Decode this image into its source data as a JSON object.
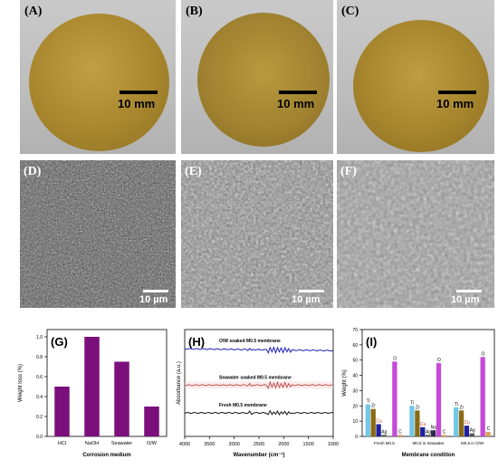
{
  "photos": {
    "A": {
      "label": "(A)",
      "scale": "10 mm"
    },
    "B": {
      "label": "(B)",
      "scale": "10 mm"
    },
    "C": {
      "label": "(C)",
      "scale": "10 mm"
    }
  },
  "sem": {
    "D": {
      "label": "(D)",
      "scale": "10 µm"
    },
    "E": {
      "label": "(E)",
      "scale": "10 µm"
    },
    "F": {
      "label": "(F)",
      "scale": "10 µm"
    }
  },
  "colors": {
    "disc": "#a8872e",
    "bar_purple": "#7b0f7b",
    "line_blue": "#1d22b8",
    "line_red": "#a31a1a",
    "line_black": "#111111"
  },
  "chart_data": [
    {
      "panel": "(G)",
      "type": "bar",
      "categories": [
        "HCl",
        "NaOH",
        "Seawater",
        "O/W"
      ],
      "values": [
        0.5,
        1.0,
        0.75,
        0.3
      ],
      "ylabel": "Weight loss (%)",
      "xlabel": "Corrosion medium",
      "ylim": [
        0.0,
        1.0
      ],
      "yticks": [
        "0.0",
        "0.2",
        "0.4",
        "0.6",
        "0.8",
        "1.0"
      ]
    },
    {
      "panel": "(H)",
      "type": "line",
      "ylabel": "Absorbance (a.u.)",
      "xlabel": "Wavenumber (cm⁻¹)",
      "xlim": [
        4000,
        1000
      ],
      "xticks": [
        "4000",
        "3500",
        "3000",
        "2500",
        "2000",
        "1500",
        "1000"
      ],
      "series": [
        {
          "name": "O/W soaked M0.5 membrane",
          "level": 0.82
        },
        {
          "name": "Seawater soaked M0.5 membrane",
          "level": 0.48
        },
        {
          "name": "Fresh M0.5 membrane",
          "level": 0.22
        }
      ]
    },
    {
      "panel": "(I)",
      "type": "bar",
      "ylabel": "Weight (%)",
      "xlabel": "Membrane condition",
      "ylim": [
        0,
        70
      ],
      "yticks": [
        "0",
        "10",
        "20",
        "30",
        "40",
        "50",
        "60",
        "70"
      ],
      "groups": [
        "Fresh M0.5",
        "M0.5 in Seawater",
        "M0.5 in O/W"
      ],
      "series": [
        {
          "name": "Ti",
          "color": "#72c6e8",
          "values": [
            21,
            20,
            19
          ]
        },
        {
          "name": "Zr",
          "color": "#8a6a12",
          "values": [
            18,
            17,
            17
          ]
        },
        {
          "name": "Cu",
          "color": "#1f1f9e",
          "values": [
            8,
            6,
            7
          ]
        },
        {
          "name": "Ag",
          "color": "#555555",
          "values": [
            1,
            1,
            2
          ]
        },
        {
          "name": "Na",
          "color": "#2a2a4a",
          "values": [
            0,
            4,
            0
          ]
        },
        {
          "name": "O",
          "color": "#c54ad6",
          "values": [
            49,
            48,
            52
          ]
        },
        {
          "name": "C",
          "color": "#d8a35a",
          "values": [
            1,
            1,
            3
          ]
        }
      ]
    }
  ]
}
